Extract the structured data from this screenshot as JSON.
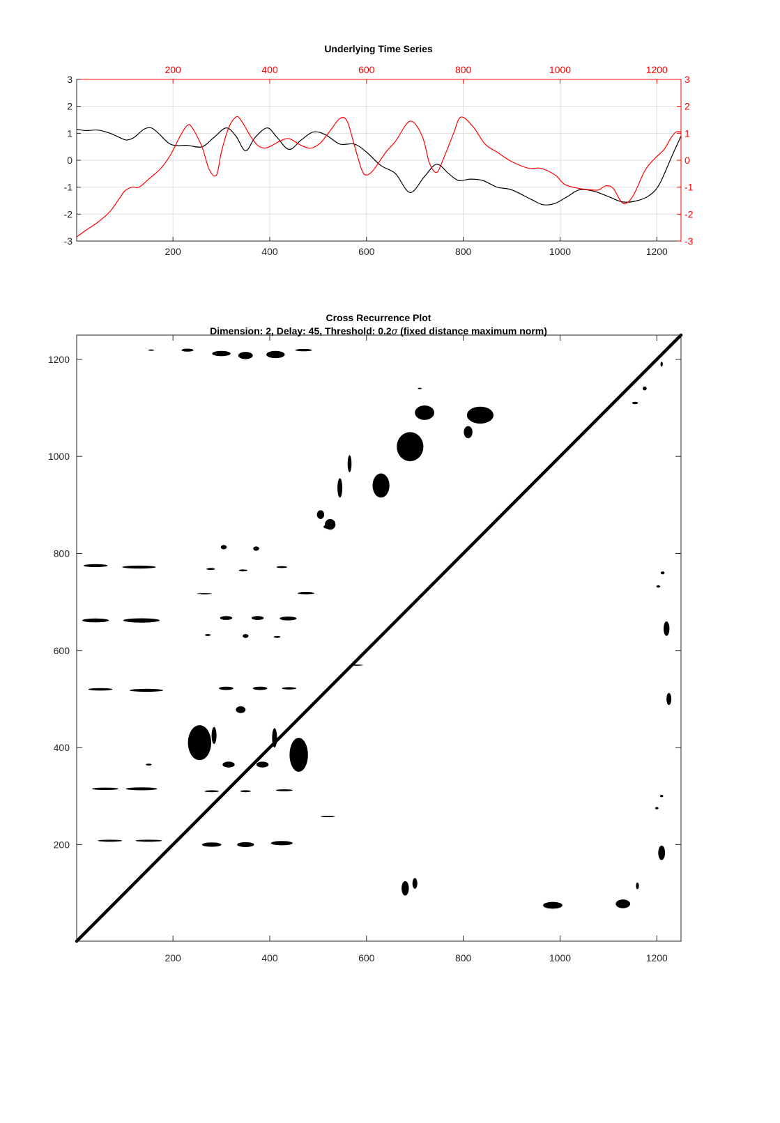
{
  "chart_data": [
    {
      "type": "line",
      "title": "Underlying Time Series",
      "xlim": [
        1,
        1250
      ],
      "ylim": [
        -3,
        3
      ],
      "x_ticks": [
        "200",
        "400",
        "600",
        "800",
        "1000",
        "1200"
      ],
      "top_x_ticks": [
        "200",
        "400",
        "600",
        "800",
        "1000",
        "1200"
      ],
      "y_ticks": [
        "3",
        "2",
        "1",
        "0",
        "-1",
        "-2",
        "-3"
      ],
      "right_y_ticks": [
        "3",
        "2",
        "1",
        "0",
        "-1",
        "-2",
        "-3"
      ],
      "grid": true,
      "series": [
        {
          "color": "#000000",
          "axis": "left-bottom",
          "x": [
            1,
            20,
            45,
            70,
            95,
            105,
            120,
            140,
            155,
            170,
            190,
            205,
            230,
            260,
            285,
            310,
            330,
            350,
            370,
            395,
            415,
            440,
            465,
            490,
            515,
            545,
            575,
            600,
            630,
            660,
            690,
            720,
            745,
            770,
            790,
            815,
            840,
            870,
            900,
            940,
            965,
            990,
            1015,
            1040,
            1070,
            1100,
            1130,
            1160,
            1185,
            1205,
            1230,
            1250
          ],
          "y": [
            1.15,
            1.1,
            1.12,
            1.0,
            0.8,
            0.75,
            0.85,
            1.15,
            1.2,
            1.0,
            0.65,
            0.55,
            0.55,
            0.5,
            0.85,
            1.2,
            0.9,
            0.35,
            0.85,
            1.2,
            0.85,
            0.4,
            0.75,
            1.05,
            0.95,
            0.6,
            0.6,
            0.3,
            -0.2,
            -0.5,
            -1.2,
            -0.6,
            -0.15,
            -0.5,
            -0.75,
            -0.7,
            -0.75,
            -1.0,
            -1.1,
            -1.45,
            -1.65,
            -1.6,
            -1.35,
            -1.1,
            -1.15,
            -1.35,
            -1.55,
            -1.5,
            -1.3,
            -0.9,
            0.1,
            0.9
          ]
        },
        {
          "color": "#ff0000",
          "axis": "right-top",
          "x": [
            1,
            20,
            45,
            70,
            90,
            100,
            115,
            130,
            150,
            175,
            195,
            215,
            230,
            240,
            260,
            275,
            290,
            300,
            315,
            330,
            340,
            360,
            375,
            390,
            405,
            420,
            440,
            465,
            485,
            505,
            525,
            545,
            560,
            575,
            590,
            600,
            615,
            640,
            660,
            690,
            715,
            730,
            745,
            760,
            780,
            795,
            820,
            845,
            870,
            900,
            935,
            960,
            990,
            1010,
            1040,
            1065,
            1080,
            1095,
            1110,
            1130,
            1150,
            1175,
            1195,
            1215,
            1230,
            1240,
            1250
          ],
          "y": [
            -2.85,
            -2.6,
            -2.3,
            -1.9,
            -1.4,
            -1.15,
            -1.0,
            -1.0,
            -0.7,
            -0.3,
            0.2,
            0.9,
            1.3,
            1.2,
            0.5,
            -0.35,
            -0.55,
            0.3,
            1.2,
            1.6,
            1.5,
            0.9,
            0.55,
            0.45,
            0.55,
            0.7,
            0.8,
            0.55,
            0.45,
            0.65,
            1.1,
            1.55,
            1.45,
            0.55,
            -0.35,
            -0.55,
            -0.35,
            0.3,
            0.7,
            1.45,
            0.9,
            -0.1,
            -0.45,
            0.1,
            1.0,
            1.6,
            1.25,
            0.6,
            0.3,
            -0.05,
            -0.3,
            -0.3,
            -0.55,
            -0.9,
            -1.05,
            -1.1,
            -1.1,
            -0.95,
            -1.05,
            -1.6,
            -1.35,
            -0.4,
            0.05,
            0.4,
            0.85,
            1.05,
            1.05
          ]
        }
      ]
    },
    {
      "type": "heatmap",
      "title": "Cross Recurrence Plot",
      "subtitle_parts": [
        "Dimension: 2,  Delay: 45,  Threshold: 0.2",
        "σ",
        " (fixed distance maximum norm)"
      ],
      "xlim": [
        1,
        1250
      ],
      "ylim": [
        1,
        1250
      ],
      "x_ticks": [
        "200",
        "400",
        "600",
        "800",
        "1000",
        "1200"
      ],
      "y_ticks": [
        "1200",
        "1000",
        "800",
        "600",
        "400",
        "200"
      ],
      "line_of_identity": {
        "from": [
          1,
          1
        ],
        "to": [
          1250,
          1250
        ]
      },
      "recurrence_blobs": [
        {
          "c": [
            230,
            1219
          ],
          "w": 25,
          "h": 6
        },
        {
          "c": [
            300,
            1212
          ],
          "w": 38,
          "h": 11
        },
        {
          "c": [
            350,
            1208
          ],
          "w": 30,
          "h": 15
        },
        {
          "c": [
            412,
            1210
          ],
          "w": 38,
          "h": 15
        },
        {
          "c": [
            470,
            1219
          ],
          "w": 35,
          "h": 5
        },
        {
          "c": [
            155,
            1219
          ],
          "w": 12,
          "h": 3
        },
        {
          "c": [
            40,
            775
          ],
          "w": 50,
          "h": 6
        },
        {
          "c": [
            130,
            772
          ],
          "w": 70,
          "h": 6
        },
        {
          "c": [
            278,
            768
          ],
          "w": 18,
          "h": 4
        },
        {
          "c": [
            345,
            765
          ],
          "w": 18,
          "h": 4
        },
        {
          "c": [
            425,
            772
          ],
          "w": 22,
          "h": 4
        },
        {
          "c": [
            305,
            813
          ],
          "w": 12,
          "h": 9
        },
        {
          "c": [
            372,
            810
          ],
          "w": 12,
          "h": 9
        },
        {
          "c": [
            265,
            717
          ],
          "w": 32,
          "h": 3
        },
        {
          "c": [
            475,
            718
          ],
          "w": 35,
          "h": 5
        },
        {
          "c": [
            40,
            662
          ],
          "w": 55,
          "h": 8
        },
        {
          "c": [
            135,
            662
          ],
          "w": 75,
          "h": 9
        },
        {
          "c": [
            310,
            667
          ],
          "w": 25,
          "h": 8
        },
        {
          "c": [
            375,
            667
          ],
          "w": 25,
          "h": 8
        },
        {
          "c": [
            438,
            666
          ],
          "w": 35,
          "h": 8
        },
        {
          "c": [
            272,
            632
          ],
          "w": 12,
          "h": 4
        },
        {
          "c": [
            350,
            630
          ],
          "w": 12,
          "h": 8
        },
        {
          "c": [
            415,
            628
          ],
          "w": 14,
          "h": 4
        },
        {
          "c": [
            50,
            520
          ],
          "w": 50,
          "h": 5
        },
        {
          "c": [
            145,
            518
          ],
          "w": 70,
          "h": 6
        },
        {
          "c": [
            310,
            522
          ],
          "w": 30,
          "h": 7
        },
        {
          "c": [
            380,
            522
          ],
          "w": 30,
          "h": 7
        },
        {
          "c": [
            440,
            522
          ],
          "w": 30,
          "h": 5
        },
        {
          "c": [
            255,
            410
          ],
          "w": 48,
          "h": 72
        },
        {
          "c": [
            340,
            478
          ],
          "w": 20,
          "h": 14
        },
        {
          "c": [
            315,
            365
          ],
          "w": 25,
          "h": 12
        },
        {
          "c": [
            385,
            365
          ],
          "w": 25,
          "h": 12
        },
        {
          "c": [
            460,
            385
          ],
          "w": 38,
          "h": 70
        },
        {
          "c": [
            285,
            425
          ],
          "w": 10,
          "h": 35
        },
        {
          "c": [
            410,
            420
          ],
          "w": 10,
          "h": 40
        },
        {
          "c": [
            60,
            315
          ],
          "w": 55,
          "h": 5
        },
        {
          "c": [
            135,
            315
          ],
          "w": 65,
          "h": 6
        },
        {
          "c": [
            280,
            310
          ],
          "w": 30,
          "h": 4
        },
        {
          "c": [
            350,
            310
          ],
          "w": 22,
          "h": 4
        },
        {
          "c": [
            430,
            312
          ],
          "w": 35,
          "h": 4
        },
        {
          "c": [
            520,
            258
          ],
          "w": 30,
          "h": 3
        },
        {
          "c": [
            70,
            208
          ],
          "w": 50,
          "h": 4
        },
        {
          "c": [
            150,
            208
          ],
          "w": 55,
          "h": 4
        },
        {
          "c": [
            280,
            200
          ],
          "w": 40,
          "h": 9
        },
        {
          "c": [
            350,
            200
          ],
          "w": 35,
          "h": 10
        },
        {
          "c": [
            425,
            203
          ],
          "w": 45,
          "h": 9
        },
        {
          "c": [
            525,
            860
          ],
          "w": 22,
          "h": 22
        },
        {
          "c": [
            545,
            935
          ],
          "w": 10,
          "h": 40
        },
        {
          "c": [
            565,
            985
          ],
          "w": 8,
          "h": 35
        },
        {
          "c": [
            505,
            880
          ],
          "w": 15,
          "h": 18
        },
        {
          "c": [
            630,
            940
          ],
          "w": 35,
          "h": 50
        },
        {
          "c": [
            690,
            1020
          ],
          "w": 55,
          "h": 60
        },
        {
          "c": [
            720,
            1090
          ],
          "w": 40,
          "h": 30
        },
        {
          "c": [
            835,
            1085
          ],
          "w": 55,
          "h": 35
        },
        {
          "c": [
            810,
            1050
          ],
          "w": 18,
          "h": 25
        },
        {
          "c": [
            985,
            75
          ],
          "w": 40,
          "h": 14
        },
        {
          "c": [
            1130,
            78
          ],
          "w": 30,
          "h": 18
        },
        {
          "c": [
            680,
            110
          ],
          "w": 15,
          "h": 30
        },
        {
          "c": [
            700,
            120
          ],
          "w": 10,
          "h": 22
        },
        {
          "c": [
            1210,
            183
          ],
          "w": 14,
          "h": 30
        },
        {
          "c": [
            1225,
            500
          ],
          "w": 10,
          "h": 25
        },
        {
          "c": [
            1220,
            645
          ],
          "w": 12,
          "h": 30
        },
        {
          "c": [
            1212,
            760
          ],
          "w": 8,
          "h": 6
        },
        {
          "c": [
            1203,
            732
          ],
          "w": 8,
          "h": 5
        },
        {
          "c": [
            1210,
            300
          ],
          "w": 7,
          "h": 5
        },
        {
          "c": [
            1200,
            275
          ],
          "w": 7,
          "h": 5
        },
        {
          "c": [
            1160,
            115
          ],
          "w": 6,
          "h": 14
        },
        {
          "c": [
            1155,
            1110
          ],
          "w": 12,
          "h": 5
        },
        {
          "c": [
            1175,
            1140
          ],
          "w": 8,
          "h": 8
        },
        {
          "c": [
            1210,
            1190
          ],
          "w": 5,
          "h": 10
        },
        {
          "c": [
            710,
            1140
          ],
          "w": 8,
          "h": 3
        },
        {
          "c": [
            580,
            570
          ],
          "w": 25,
          "h": 3
        },
        {
          "c": [
            150,
            365
          ],
          "w": 12,
          "h": 4
        },
        {
          "c": [
            520,
            855
          ],
          "w": 18,
          "h": 8
        }
      ]
    }
  ]
}
